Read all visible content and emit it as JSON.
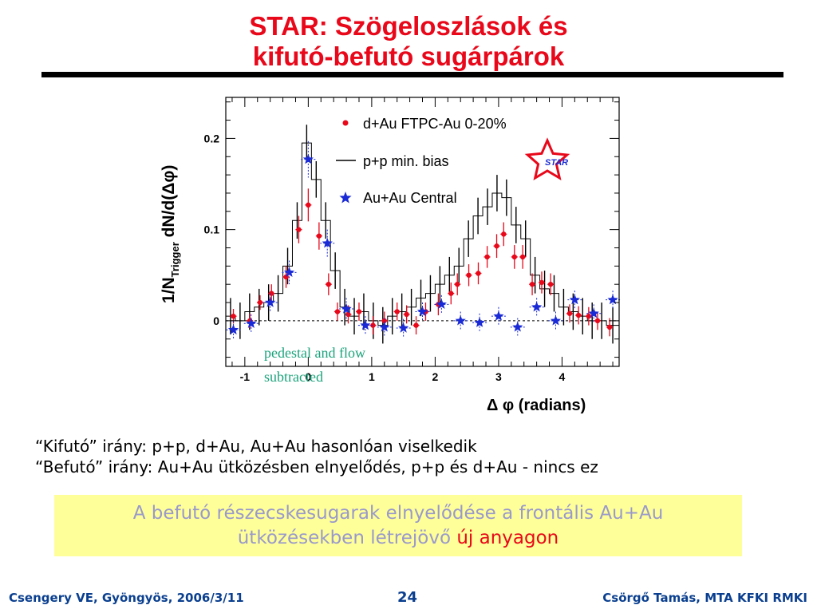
{
  "slide": {
    "title_line1": "STAR: Szögeloszlások és",
    "title_line2": "kifutó-befutó sugárpárok",
    "bullet1": "“Kifutó” irány: p+p, d+Au, Au+Au hasonlóan viselkedik",
    "bullet2": "“Befutó” irány: Au+Au ütközésben elnyelődés, p+p és d+Au - nincs ez",
    "box_line1": "A befutó részecskesugarak elnyelődése a frontális  Au+Au",
    "box_line2_pre": "ütközésekben létrejövő ",
    "box_line2_hl1": "új",
    "box_line2_hl2": " anyagon",
    "footer_left": "Csengery VE, Gyöngyös, 2006/3/11",
    "footer_page": "24",
    "footer_right": "Csörgő Tamás, MTA KFKI RMKI"
  },
  "colors": {
    "title": "#e8081a",
    "dAu": "#e8081a",
    "AuAu": "#1a2bd6",
    "footer": "#0a3f8f",
    "annotation": "#1aa37a",
    "box_bg": "#ffff99",
    "box_text": "#9999cc"
  },
  "chart_data": {
    "type": "scatter",
    "xlabel": "Δ φ (radians)",
    "ylabel_main": "1/N",
    "ylabel_sub": "Trigger",
    "ylabel_rest": " dN/d(Δφ)",
    "xlim": [
      -1.3,
      4.9
    ],
    "ylim": [
      -0.05,
      0.245
    ],
    "x_ticks": [
      -1,
      0,
      1,
      2,
      3,
      4
    ],
    "x_tick_labels": [
      "-1",
      "0",
      "1",
      "2",
      "3",
      "4"
    ],
    "y_ticks": [
      0,
      0.1,
      0.2
    ],
    "y_tick_labels": [
      "0",
      "0.1",
      "0.2"
    ],
    "annotation_line1": "pedestal and flow",
    "annotation_line2": "subtracted",
    "logo_text": "STAR",
    "legend": [
      {
        "label": "d+Au FTPC-Au 0-20%",
        "marker": "dot"
      },
      {
        "label": "p+p min. bias",
        "marker": "line"
      },
      {
        "label": "Au+Au Central",
        "marker": "star"
      }
    ],
    "pp_histogram": {
      "name": "p+p min. bias",
      "bin_edges": [
        -1.3,
        -1.15,
        -1.0,
        -0.85,
        -0.7,
        -0.55,
        -0.4,
        -0.25,
        -0.1,
        0.05,
        0.2,
        0.35,
        0.5,
        0.65,
        0.8,
        0.95,
        1.1,
        1.25,
        1.4,
        1.55,
        1.7,
        1.85,
        2.0,
        2.15,
        2.3,
        2.45,
        2.6,
        2.75,
        2.9,
        3.05,
        3.2,
        3.35,
        3.5,
        3.65,
        3.8,
        3.95,
        4.1,
        4.25,
        4.4,
        4.55,
        4.7,
        4.9
      ],
      "values": [
        0.005,
        0.0,
        0.01,
        0.015,
        0.02,
        0.03,
        0.06,
        0.11,
        0.195,
        0.155,
        0.11,
        0.055,
        0.015,
        0.005,
        0.01,
        0.0,
        -0.005,
        0.005,
        0.01,
        0.015,
        0.025,
        0.03,
        0.04,
        0.05,
        0.06,
        0.09,
        0.115,
        0.125,
        0.14,
        0.135,
        0.105,
        0.09,
        0.05,
        0.035,
        0.03,
        0.015,
        0.01,
        0.005,
        0.0,
        0.0,
        -0.005
      ]
    },
    "series": [
      {
        "name": "d+Au FTPC-Au 0-20%",
        "points": [
          {
            "x": -1.18,
            "y": 0.005,
            "e": 0.008
          },
          {
            "x": -0.92,
            "y": 0.0,
            "e": 0.008
          },
          {
            "x": -0.76,
            "y": 0.02,
            "e": 0.008
          },
          {
            "x": -0.58,
            "y": 0.03,
            "e": 0.01
          },
          {
            "x": -0.35,
            "y": 0.048,
            "e": 0.012
          },
          {
            "x": -0.15,
            "y": 0.1,
            "e": 0.015
          },
          {
            "x": 0.0,
            "y": 0.127,
            "e": 0.018
          },
          {
            "x": 0.17,
            "y": 0.093,
            "e": 0.015
          },
          {
            "x": 0.32,
            "y": 0.04,
            "e": 0.012
          },
          {
            "x": 0.46,
            "y": 0.01,
            "e": 0.01
          },
          {
            "x": 0.63,
            "y": 0.007,
            "e": 0.01
          },
          {
            "x": 0.8,
            "y": 0.01,
            "e": 0.01
          },
          {
            "x": 1.02,
            "y": -0.005,
            "e": 0.01
          },
          {
            "x": 1.2,
            "y": 0.0,
            "e": 0.01
          },
          {
            "x": 1.4,
            "y": 0.01,
            "e": 0.01
          },
          {
            "x": 1.55,
            "y": 0.007,
            "e": 0.01
          },
          {
            "x": 1.7,
            "y": -0.005,
            "e": 0.01
          },
          {
            "x": 1.85,
            "y": 0.01,
            "e": 0.01
          },
          {
            "x": 2.05,
            "y": 0.018,
            "e": 0.012
          },
          {
            "x": 2.25,
            "y": 0.03,
            "e": 0.012
          },
          {
            "x": 2.35,
            "y": 0.04,
            "e": 0.012
          },
          {
            "x": 2.53,
            "y": 0.05,
            "e": 0.012
          },
          {
            "x": 2.68,
            "y": 0.052,
            "e": 0.012
          },
          {
            "x": 2.82,
            "y": 0.07,
            "e": 0.012
          },
          {
            "x": 2.97,
            "y": 0.082,
            "e": 0.013
          },
          {
            "x": 3.08,
            "y": 0.095,
            "e": 0.013
          },
          {
            "x": 3.25,
            "y": 0.07,
            "e": 0.013
          },
          {
            "x": 3.38,
            "y": 0.07,
            "e": 0.013
          },
          {
            "x": 3.53,
            "y": 0.04,
            "e": 0.012
          },
          {
            "x": 3.68,
            "y": 0.042,
            "e": 0.012
          },
          {
            "x": 3.82,
            "y": 0.04,
            "e": 0.012
          },
          {
            "x": 4.12,
            "y": 0.008,
            "e": 0.01
          },
          {
            "x": 4.26,
            "y": 0.006,
            "e": 0.01
          },
          {
            "x": 4.42,
            "y": 0.005,
            "e": 0.01
          },
          {
            "x": 4.56,
            "y": 0.0,
            "e": 0.01
          },
          {
            "x": 4.75,
            "y": -0.007,
            "e": 0.01
          }
        ]
      },
      {
        "name": "Au+Au Central",
        "points": [
          {
            "x": -1.18,
            "y": -0.01,
            "e": 0.01
          },
          {
            "x": -0.9,
            "y": -0.003,
            "e": 0.01
          },
          {
            "x": -0.6,
            "y": 0.02,
            "e": 0.01
          },
          {
            "x": -0.3,
            "y": 0.053,
            "e": 0.013
          },
          {
            "x": 0.0,
            "y": 0.177,
            "e": 0.02
          },
          {
            "x": 0.3,
            "y": 0.085,
            "e": 0.015
          },
          {
            "x": 0.6,
            "y": 0.013,
            "e": 0.012
          },
          {
            "x": 0.9,
            "y": -0.005,
            "e": 0.01
          },
          {
            "x": 1.2,
            "y": -0.007,
            "e": 0.01
          },
          {
            "x": 1.5,
            "y": -0.008,
            "e": 0.01
          },
          {
            "x": 1.8,
            "y": 0.01,
            "e": 0.01
          },
          {
            "x": 2.1,
            "y": 0.018,
            "e": 0.01
          },
          {
            "x": 2.4,
            "y": 0.0,
            "e": 0.01
          },
          {
            "x": 2.7,
            "y": -0.002,
            "e": 0.01
          },
          {
            "x": 3.0,
            "y": 0.005,
            "e": 0.01
          },
          {
            "x": 3.3,
            "y": -0.007,
            "e": 0.01
          },
          {
            "x": 3.6,
            "y": 0.015,
            "e": 0.01
          },
          {
            "x": 3.9,
            "y": 0.0,
            "e": 0.01
          },
          {
            "x": 4.2,
            "y": 0.023,
            "e": 0.01
          },
          {
            "x": 4.5,
            "y": 0.008,
            "e": 0.01
          },
          {
            "x": 4.8,
            "y": 0.023,
            "e": 0.01
          }
        ]
      }
    ]
  }
}
